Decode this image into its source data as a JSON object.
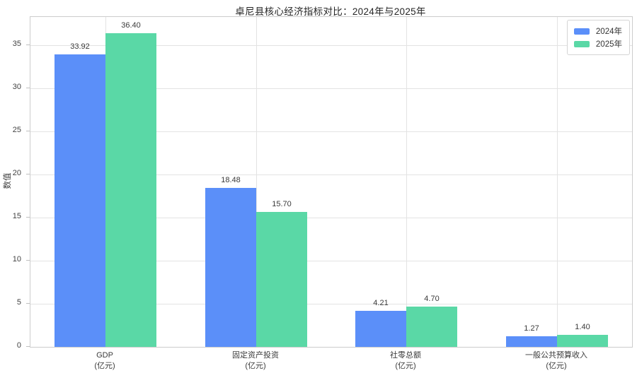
{
  "chart_data": {
    "type": "bar",
    "title": "卓尼县核心经济指标对比：2024年与2025年",
    "ylabel": "数值",
    "xlabel": "",
    "categories": [
      {
        "name": "GDP",
        "unit": "(亿元)"
      },
      {
        "name": "固定资产投资",
        "unit": "(亿元)"
      },
      {
        "name": "社零总额",
        "unit": "(亿元)"
      },
      {
        "name": "一般公共预算收入",
        "unit": "(亿元)"
      }
    ],
    "series": [
      {
        "name": "2024年",
        "color": "#5B8FF9",
        "values": [
          33.92,
          18.48,
          4.21,
          1.27
        ]
      },
      {
        "name": "2025年",
        "color": "#5AD8A6",
        "values": [
          36.4,
          15.7,
          4.7,
          1.4
        ]
      }
    ],
    "ylim": [
      0,
      38.3
    ],
    "yticks": [
      0,
      5,
      10,
      15,
      20,
      25,
      30,
      35
    ],
    "grid": true,
    "legend_position": "upper right",
    "value_label_decimals": 2,
    "style": {
      "background": "#ffffff",
      "grid_color": "#e3e3e3",
      "spine_color": "#cccccc",
      "bar_label_color": "#3a3a3a",
      "tick_label_color": "#424242"
    }
  }
}
